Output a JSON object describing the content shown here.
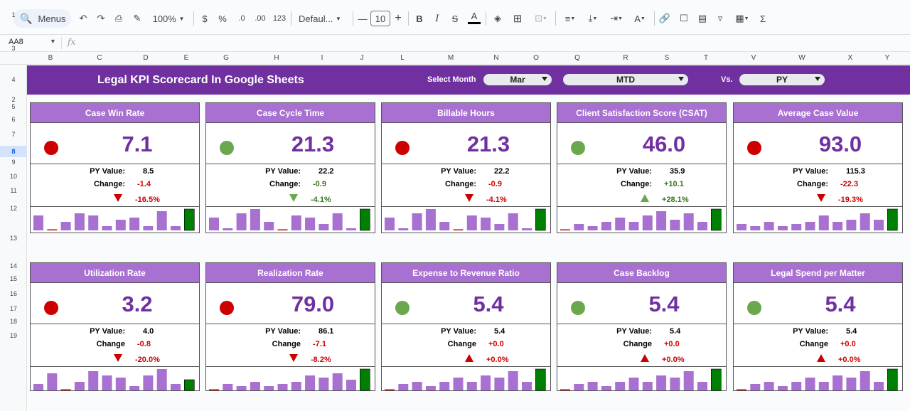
{
  "toolbar": {
    "menus_label": "Menus",
    "zoom": "100%",
    "currency": "$",
    "percent": "%",
    "dec_decrease": ".0",
    "dec_increase": ".00",
    "number_format": "123",
    "font_name": "Defaul...",
    "font_size": "10"
  },
  "formula_bar": {
    "cell_ref": "AA8",
    "fx": "fx"
  },
  "columns": [
    "B",
    "C",
    "D",
    "E",
    "G",
    "H",
    "I",
    "J",
    "L",
    "M",
    "N",
    "O",
    "Q",
    "R",
    "S",
    "T",
    "V",
    "W",
    "X",
    "Y"
  ],
  "rows": [
    "1",
    "2",
    "3",
    "4",
    "5",
    "6",
    "7",
    "8",
    "9",
    "10",
    "11",
    "12",
    "13",
    "14",
    "15",
    "16",
    "17",
    "18",
    "19"
  ],
  "selected_row": "8",
  "banner": {
    "title": "Legal KPI Scorecard In Google Sheets",
    "select_month_label": "Select Month",
    "month": "Mar",
    "period": "MTD",
    "vs_label": "Vs.",
    "compare": "PY"
  },
  "labels": {
    "py_value": "PY Value:",
    "change_colon": "Change:",
    "change": "Change"
  },
  "colors": {
    "banner": "#7030a0",
    "card_header": "#a870d0",
    "value": "#7030a0",
    "bar": "#a870d0",
    "bar_highlight": "#008000",
    "bar_zero": "#cc0000",
    "status_red": "#cc0000",
    "status_green": "#6aa84f"
  },
  "cards": [
    {
      "title": "Case Win Rate",
      "value": "7.1",
      "status": "red",
      "py": "8.5",
      "change": "-1.4",
      "pct": "-16.5%",
      "dir": "down",
      "good": false,
      "bars": [
        7,
        0,
        4,
        8,
        7,
        2,
        5,
        6,
        2,
        9,
        2,
        10
      ]
    },
    {
      "title": "Case Cycle Time",
      "value": "21.3",
      "status": "green",
      "py": "22.2",
      "change": "-0.9",
      "pct": "-4.1%",
      "dir": "down",
      "good": true,
      "bars": [
        6,
        1,
        8,
        10,
        4,
        0,
        7,
        6,
        3,
        8,
        1,
        10
      ]
    },
    {
      "title": "Billable Hours",
      "value": "21.3",
      "status": "red",
      "py": "22.2",
      "change": "-0.9",
      "pct": "-4.1%",
      "dir": "down",
      "good": false,
      "bars": [
        6,
        1,
        8,
        10,
        4,
        0,
        7,
        6,
        3,
        8,
        1,
        10
      ]
    },
    {
      "title": "Client Satisfaction Score (CSAT)",
      "value": "46.0",
      "status": "green",
      "py": "35.9",
      "change": "+10.1",
      "pct": "+28.1%",
      "dir": "up",
      "good": true,
      "bars": [
        0,
        3,
        2,
        4,
        6,
        4,
        7,
        9,
        5,
        8,
        4,
        10
      ]
    },
    {
      "title": "Average Case Value",
      "value": "93.0",
      "status": "red",
      "py": "115.3",
      "change": "-22.3",
      "pct": "-19.3%",
      "dir": "down",
      "good": false,
      "bars": [
        3,
        2,
        4,
        2,
        3,
        4,
        7,
        4,
        5,
        8,
        5,
        10
      ]
    },
    {
      "title": "Utilization Rate",
      "value": "3.2",
      "status": "red",
      "py": "4.0",
      "change": "-0.8",
      "pct": "-20.0%",
      "dir": "down",
      "good": false,
      "bars": [
        3,
        8,
        0,
        4,
        9,
        7,
        6,
        2,
        7,
        10,
        3,
        5
      ]
    },
    {
      "title": "Realization Rate",
      "value": "79.0",
      "status": "red",
      "py": "86.1",
      "change": "-7.1",
      "pct": "-8.2%",
      "dir": "down",
      "good": false,
      "bars": [
        0,
        3,
        2,
        4,
        2,
        3,
        4,
        7,
        6,
        8,
        5,
        10
      ]
    },
    {
      "title": "Expense to Revenue Ratio",
      "value": "5.4",
      "status": "green",
      "py": "5.4",
      "change": "+0.0",
      "pct": "+0.0%",
      "dir": "up",
      "good": false,
      "bars": [
        0,
        3,
        4,
        2,
        4,
        6,
        4,
        7,
        6,
        9,
        4,
        10
      ]
    },
    {
      "title": "Case Backlog",
      "value": "5.4",
      "status": "green",
      "py": "5.4",
      "change": "+0.0",
      "pct": "+0.0%",
      "dir": "up",
      "good": false,
      "bars": [
        0,
        3,
        4,
        2,
        4,
        6,
        4,
        7,
        6,
        9,
        4,
        10
      ]
    },
    {
      "title": "Legal Spend per Matter",
      "value": "5.4",
      "status": "green",
      "py": "5.4",
      "change": "+0.0",
      "pct": "+0.0%",
      "dir": "up",
      "good": false,
      "bars": [
        0,
        3,
        4,
        2,
        4,
        6,
        4,
        7,
        6,
        9,
        4,
        10
      ]
    }
  ]
}
